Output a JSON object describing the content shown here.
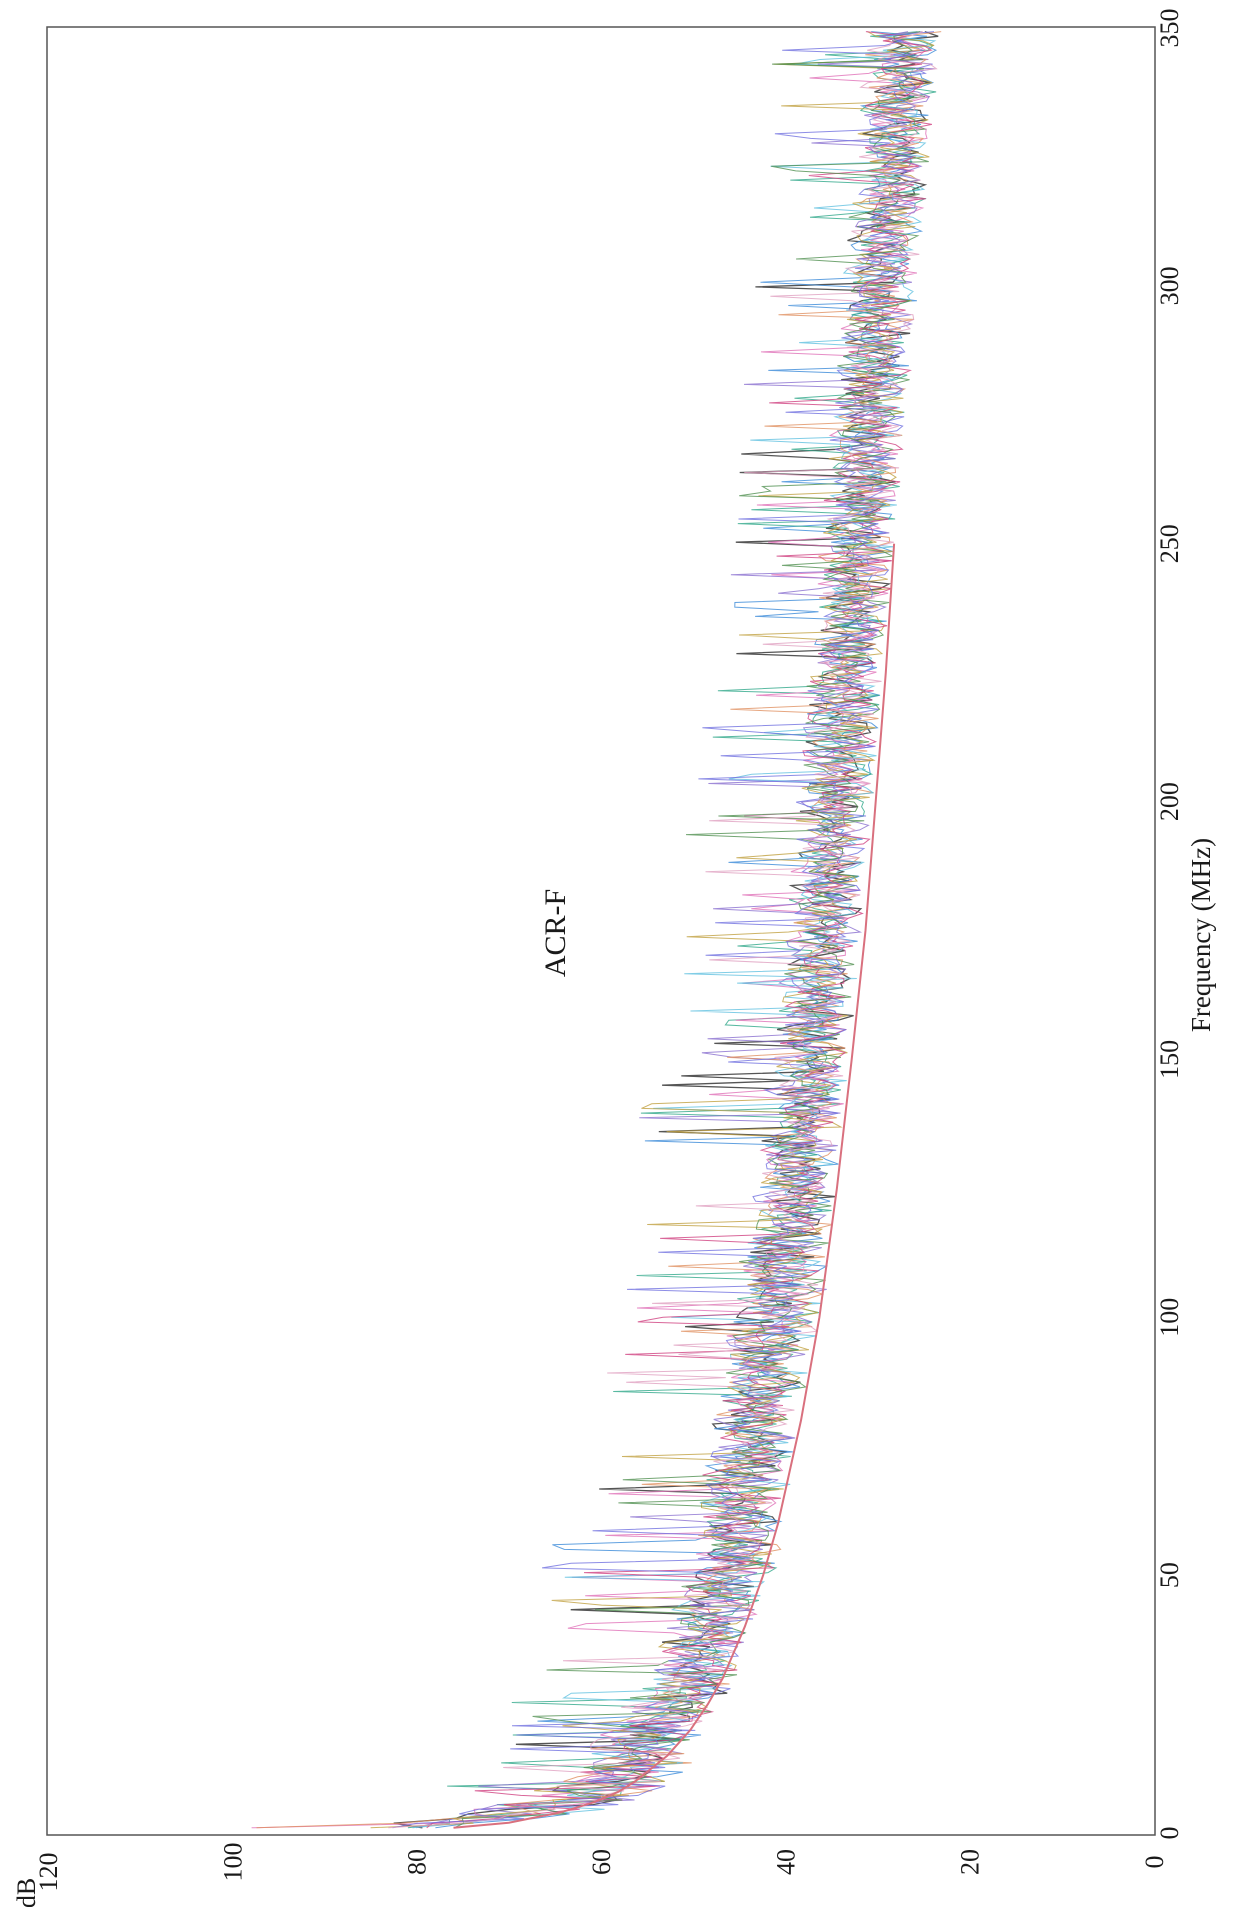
{
  "chart_data": {
    "type": "line",
    "title": "ACR-F",
    "xlabel": "Frequency (MHz)",
    "ylabel": "dB",
    "xlim": [
      0,
      350
    ],
    "ylim": [
      0,
      120
    ],
    "x_ticks": [
      0,
      50,
      100,
      150,
      200,
      250,
      300,
      350
    ],
    "y_ticks": [
      0,
      20,
      40,
      60,
      80,
      100,
      120
    ],
    "grid": false,
    "legend": "none",
    "rotation": "page rotated 90 degrees counter-clockwise (frequency axis runs along the right edge)",
    "limit_line": {
      "color": "#d9707e",
      "x": [
        1,
        2,
        4,
        6,
        8,
        10,
        15,
        20,
        25,
        30,
        40,
        50,
        60,
        80,
        100,
        125,
        150,
        175,
        200,
        225,
        250
      ],
      "y": [
        76,
        70,
        64.4,
        60.7,
        58.1,
        56.3,
        52.8,
        50.3,
        48.4,
        46.8,
        44.4,
        42.4,
        40.8,
        38.3,
        36.3,
        34.4,
        32.8,
        31.3,
        30.2,
        29.1,
        28.2
      ]
    },
    "measured_traces": {
      "count": 12,
      "colors": [
        "#2a2a2a",
        "#3a8ad8",
        "#2fa88a",
        "#e070b8",
        "#8a6fd0",
        "#e09060",
        "#60c0e0",
        "#c0a040",
        "#d04080",
        "#509050",
        "#7070e0",
        "#e0a0c0"
      ],
      "x": [
        1,
        5,
        10,
        20,
        30,
        40,
        50,
        60,
        70,
        80,
        90,
        100,
        110,
        120,
        130,
        140,
        150,
        160,
        170,
        180,
        190,
        200,
        210,
        220,
        230,
        240,
        250,
        260,
        270,
        280,
        290,
        300,
        310,
        320,
        330,
        340,
        350
      ],
      "y_typical": [
        80,
        65,
        58,
        54,
        50,
        48,
        46,
        45,
        44,
        43,
        42,
        41,
        40,
        39,
        38.5,
        38,
        37,
        36.5,
        36,
        35.5,
        35,
        34.5,
        34,
        33.5,
        33,
        32.5,
        32,
        31.5,
        31,
        30.5,
        30,
        29.5,
        29,
        28.5,
        28,
        27.5,
        27
      ],
      "y_min": [
        75,
        56,
        51,
        48,
        45,
        43,
        41,
        40,
        39,
        38,
        37,
        36,
        35,
        34.5,
        34,
        33.5,
        33,
        32.5,
        32,
        31.5,
        31,
        30.5,
        30,
        29.5,
        29,
        28.5,
        28,
        27.5,
        27,
        26.5,
        26,
        25.5,
        25,
        24.5,
        24,
        23.5,
        23
      ],
      "y_max": [
        98,
        86,
        78,
        72,
        72,
        68,
        68,
        64,
        62,
        62,
        60,
        58,
        58,
        55,
        54,
        58,
        52,
        51,
        52,
        50,
        52,
        50,
        49,
        49,
        48,
        47,
        47,
        46,
        45,
        45,
        44,
        44,
        43,
        43,
        43,
        43,
        42
      ]
    }
  }
}
